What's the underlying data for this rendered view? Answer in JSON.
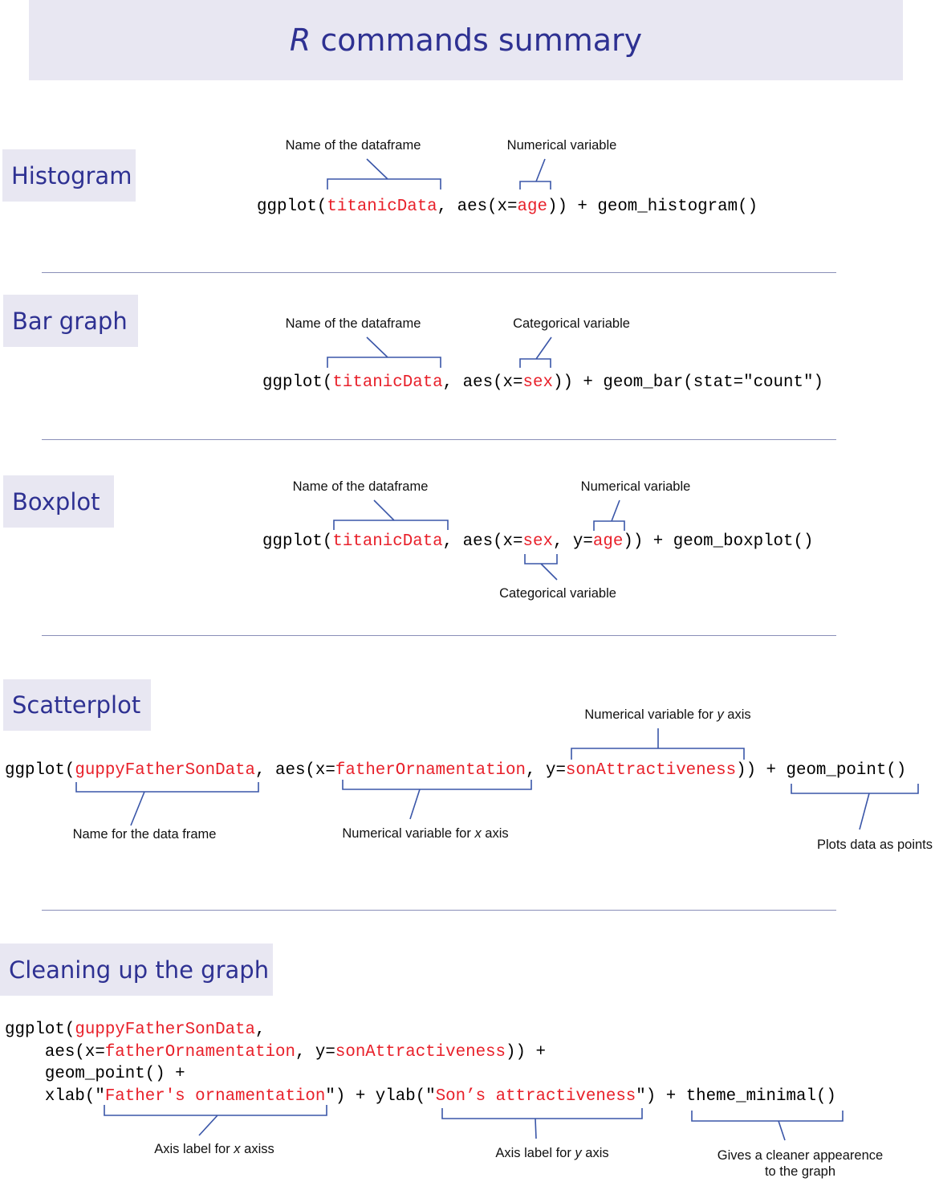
{
  "title": {
    "italic": "R",
    "rest": " commands summary"
  },
  "colors": {
    "header_bg": "#e8e7f2",
    "header_text": "#2e3192",
    "highlight": "#e8202a",
    "bracket": "#3a56a8"
  },
  "sections": [
    {
      "id": "histogram",
      "label": "Histogram"
    },
    {
      "id": "bar",
      "label": "Bar graph"
    },
    {
      "id": "boxplot",
      "label": "Boxplot"
    },
    {
      "id": "scatter",
      "label": "Scatterplot"
    },
    {
      "id": "cleanup",
      "label": "Cleaning up the graph"
    }
  ],
  "code": [
    {
      "id": "histogram-code",
      "segments": [
        [
          "ggplot(",
          0
        ],
        [
          "titanicData",
          1
        ],
        [
          ", aes(x=",
          0
        ],
        [
          "age",
          1
        ],
        [
          ")) + geom_histogram()",
          0
        ]
      ]
    },
    {
      "id": "bar-code",
      "segments": [
        [
          "ggplot(",
          0
        ],
        [
          "titanicData",
          1
        ],
        [
          ", aes(x=",
          0
        ],
        [
          "sex",
          1
        ],
        [
          ")) + geom_bar(stat=\"count\")",
          0
        ]
      ]
    },
    {
      "id": "boxplot-code",
      "segments": [
        [
          "ggplot(",
          0
        ],
        [
          "titanicData",
          1
        ],
        [
          ", aes(x=",
          0
        ],
        [
          "sex",
          1
        ],
        [
          ", y=",
          0
        ],
        [
          "age",
          1
        ],
        [
          ")) + geom_boxplot()",
          0
        ]
      ]
    },
    {
      "id": "scatter-code",
      "segments": [
        [
          "ggplot(",
          0
        ],
        [
          "guppyFatherSonData",
          1
        ],
        [
          ", aes(x=",
          0
        ],
        [
          "fatherOrnamentation",
          1
        ],
        [
          ", y=",
          0
        ],
        [
          "sonAttractiveness",
          1
        ],
        [
          ")) + geom_point()",
          0
        ]
      ]
    },
    {
      "id": "cleanup-line-1",
      "segments": [
        [
          "ggplot(",
          0
        ],
        [
          "guppyFatherSonData",
          1
        ],
        [
          ",",
          0
        ]
      ]
    },
    {
      "id": "cleanup-line-2",
      "segments": [
        [
          "    aes(x=",
          0
        ],
        [
          "fatherOrnamentation",
          1
        ],
        [
          ", y=",
          0
        ],
        [
          "sonAttractiveness",
          1
        ],
        [
          ")) +",
          0
        ]
      ]
    },
    {
      "id": "cleanup-line-3",
      "segments": [
        [
          "    geom_point() +",
          0
        ]
      ]
    },
    {
      "id": "cleanup-line-4",
      "segments": [
        [
          "    xlab(\"",
          0
        ],
        [
          "Father's ornamentation",
          1
        ],
        [
          "\") + ylab(\"",
          0
        ],
        [
          "Son’s attractiveness",
          1
        ],
        [
          "\") + theme_minimal()",
          0
        ]
      ]
    }
  ],
  "annotations": [
    {
      "id": "hist-df",
      "parts": [
        [
          "Name of the dataframe",
          0
        ]
      ]
    },
    {
      "id": "hist-num",
      "parts": [
        [
          "Numerical variable",
          0
        ]
      ]
    },
    {
      "id": "bar-df",
      "parts": [
        [
          "Name of the dataframe",
          0
        ]
      ]
    },
    {
      "id": "bar-cat",
      "parts": [
        [
          "Categorical variable",
          0
        ]
      ]
    },
    {
      "id": "box-df",
      "parts": [
        [
          "Name of the dataframe",
          0
        ]
      ]
    },
    {
      "id": "box-num",
      "parts": [
        [
          "Numerical variable",
          0
        ]
      ]
    },
    {
      "id": "box-cat",
      "parts": [
        [
          "Categorical variable",
          0
        ]
      ]
    },
    {
      "id": "sc-y",
      "parts": [
        [
          "Numerical variable for ",
          0
        ],
        [
          "y",
          1
        ],
        [
          " axis",
          0
        ]
      ]
    },
    {
      "id": "sc-df",
      "parts": [
        [
          "Name for the data frame",
          0
        ]
      ]
    },
    {
      "id": "sc-x",
      "parts": [
        [
          "Numerical variable for ",
          0
        ],
        [
          "x",
          1
        ],
        [
          " axis",
          0
        ]
      ]
    },
    {
      "id": "sc-points",
      "parts": [
        [
          "Plots data as points",
          0
        ]
      ]
    },
    {
      "id": "cl-x",
      "parts": [
        [
          "Axis label for ",
          0
        ],
        [
          "x",
          1
        ],
        [
          " axiss",
          0
        ]
      ]
    },
    {
      "id": "cl-y",
      "parts": [
        [
          "Axis label for ",
          0
        ],
        [
          "y",
          1
        ],
        [
          " axis",
          0
        ]
      ]
    },
    {
      "id": "cl-theme",
      "parts": [
        [
          "Gives a cleaner appearence",
          0
        ],
        [
          "\n",
          0
        ],
        [
          "to the graph",
          0
        ]
      ]
    }
  ]
}
